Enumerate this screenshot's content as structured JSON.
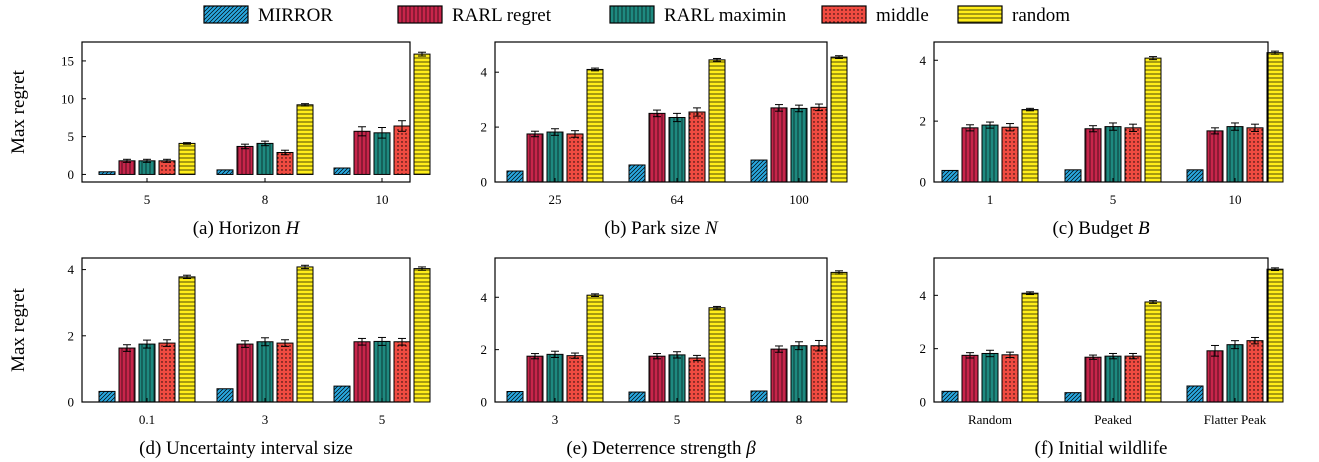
{
  "legend": [
    {
      "name": "MIRROR",
      "color": "#29a8e0",
      "pattern": "diag"
    },
    {
      "name": "RARL regret",
      "color": "#c8254b",
      "pattern": "vert"
    },
    {
      "name": "RARL maximin",
      "color": "#1e8a80",
      "pattern": "vert"
    },
    {
      "name": "middle",
      "color": "#f04b41",
      "pattern": "dots"
    },
    {
      "name": "random",
      "color": "#ffee1a",
      "pattern": "horiz"
    }
  ],
  "chart_data": [
    {
      "type": "bar",
      "caption_prefix": "(a) Horizon ",
      "caption_var": "H",
      "ylabel": "Max regret",
      "categories": [
        "5",
        "8",
        "10"
      ],
      "ylim": [
        -1,
        17.5
      ],
      "yticks": [
        0,
        5,
        10,
        15
      ],
      "series": [
        {
          "name": "MIRROR",
          "values": [
            0.35,
            0.6,
            0.85
          ],
          "errors": [
            0,
            0,
            0
          ]
        },
        {
          "name": "RARL regret",
          "values": [
            1.8,
            3.7,
            5.7
          ],
          "errors": [
            0.2,
            0.3,
            0.6
          ]
        },
        {
          "name": "RARL maximin",
          "values": [
            1.8,
            4.1,
            5.5
          ],
          "errors": [
            0.2,
            0.3,
            0.7
          ]
        },
        {
          "name": "middle",
          "values": [
            1.8,
            2.9,
            6.4
          ],
          "errors": [
            0.2,
            0.3,
            0.7
          ]
        },
        {
          "name": "random",
          "values": [
            4.1,
            9.2,
            15.9
          ],
          "errors": [
            0.1,
            0.15,
            0.25
          ]
        }
      ]
    },
    {
      "type": "bar",
      "caption_prefix": "(b) Park size ",
      "caption_var": "N",
      "ylabel": "",
      "categories": [
        "25",
        "64",
        "100"
      ],
      "ylim": [
        0,
        5.1
      ],
      "yticks": [
        0,
        2,
        4
      ],
      "series": [
        {
          "name": "MIRROR",
          "values": [
            0.4,
            0.62,
            0.8
          ],
          "errors": [
            0,
            0,
            0
          ]
        },
        {
          "name": "RARL regret",
          "values": [
            1.75,
            2.5,
            2.7
          ],
          "errors": [
            0.1,
            0.12,
            0.12
          ]
        },
        {
          "name": "RARL maximin",
          "values": [
            1.82,
            2.35,
            2.68
          ],
          "errors": [
            0.12,
            0.15,
            0.12
          ]
        },
        {
          "name": "middle",
          "values": [
            1.75,
            2.55,
            2.72
          ],
          "errors": [
            0.12,
            0.15,
            0.12
          ]
        },
        {
          "name": "random",
          "values": [
            4.1,
            4.45,
            4.55
          ],
          "errors": [
            0.05,
            0.05,
            0.05
          ]
        }
      ]
    },
    {
      "type": "bar",
      "caption_prefix": "(c) Budget ",
      "caption_var": "B",
      "ylabel": "",
      "categories": [
        "1",
        "5",
        "10"
      ],
      "ylim": [
        0,
        4.6
      ],
      "yticks": [
        0,
        2,
        4
      ],
      "series": [
        {
          "name": "MIRROR",
          "values": [
            0.38,
            0.4,
            0.4
          ],
          "errors": [
            0,
            0,
            0
          ]
        },
        {
          "name": "RARL regret",
          "values": [
            1.78,
            1.75,
            1.68
          ],
          "errors": [
            0.1,
            0.1,
            0.1
          ]
        },
        {
          "name": "RARL maximin",
          "values": [
            1.87,
            1.82,
            1.82
          ],
          "errors": [
            0.1,
            0.12,
            0.12
          ]
        },
        {
          "name": "middle",
          "values": [
            1.8,
            1.78,
            1.78
          ],
          "errors": [
            0.12,
            0.12,
            0.12
          ]
        },
        {
          "name": "random",
          "values": [
            2.38,
            4.07,
            4.25
          ],
          "errors": [
            0.04,
            0.05,
            0.05
          ]
        }
      ]
    },
    {
      "type": "bar",
      "caption_prefix": "(d) Uncertainty interval size",
      "caption_var": "",
      "ylabel": "Max regret",
      "categories": [
        "0.1",
        "3",
        "5"
      ],
      "ylim": [
        0,
        4.35
      ],
      "yticks": [
        0,
        2,
        4
      ],
      "series": [
        {
          "name": "MIRROR",
          "values": [
            0.32,
            0.4,
            0.48
          ],
          "errors": [
            0,
            0,
            0
          ]
        },
        {
          "name": "RARL regret",
          "values": [
            1.63,
            1.75,
            1.82
          ],
          "errors": [
            0.1,
            0.1,
            0.1
          ]
        },
        {
          "name": "RARL maximin",
          "values": [
            1.75,
            1.82,
            1.83
          ],
          "errors": [
            0.12,
            0.12,
            0.12
          ]
        },
        {
          "name": "middle",
          "values": [
            1.78,
            1.78,
            1.82
          ],
          "errors": [
            0.1,
            0.1,
            0.1
          ]
        },
        {
          "name": "random",
          "values": [
            3.78,
            4.08,
            4.03
          ],
          "errors": [
            0.05,
            0.05,
            0.05
          ]
        }
      ]
    },
    {
      "type": "bar",
      "caption_prefix": "(e) Deterrence strength ",
      "caption_var": "β",
      "ylabel": "",
      "categories": [
        "3",
        "5",
        "8"
      ],
      "ylim": [
        0,
        5.5
      ],
      "yticks": [
        0,
        2,
        4
      ],
      "series": [
        {
          "name": "MIRROR",
          "values": [
            0.4,
            0.38,
            0.42
          ],
          "errors": [
            0,
            0,
            0
          ]
        },
        {
          "name": "RARL regret",
          "values": [
            1.75,
            1.75,
            2.02
          ],
          "errors": [
            0.1,
            0.1,
            0.12
          ]
        },
        {
          "name": "RARL maximin",
          "values": [
            1.82,
            1.8,
            2.15
          ],
          "errors": [
            0.12,
            0.12,
            0.15
          ]
        },
        {
          "name": "middle",
          "values": [
            1.77,
            1.68,
            2.15
          ],
          "errors": [
            0.1,
            0.1,
            0.2
          ]
        },
        {
          "name": "random",
          "values": [
            4.08,
            3.6,
            4.95
          ],
          "errors": [
            0.05,
            0.05,
            0.06
          ]
        }
      ]
    },
    {
      "type": "bar",
      "caption_prefix": "(f) Initial wildlife",
      "caption_var": "",
      "ylabel": "",
      "categories": [
        "Random",
        "Peaked",
        "Flatter Peak"
      ],
      "ylim": [
        0,
        5.4
      ],
      "yticks": [
        0,
        2,
        4
      ],
      "series": [
        {
          "name": "MIRROR",
          "values": [
            0.4,
            0.35,
            0.6
          ],
          "errors": [
            0,
            0,
            0
          ]
        },
        {
          "name": "RARL regret",
          "values": [
            1.75,
            1.68,
            1.92
          ],
          "errors": [
            0.1,
            0.08,
            0.2
          ]
        },
        {
          "name": "RARL maximin",
          "values": [
            1.82,
            1.72,
            2.15
          ],
          "errors": [
            0.12,
            0.1,
            0.15
          ]
        },
        {
          "name": "middle",
          "values": [
            1.77,
            1.72,
            2.3
          ],
          "errors": [
            0.1,
            0.1,
            0.12
          ]
        },
        {
          "name": "random",
          "values": [
            4.08,
            3.75,
            4.98
          ],
          "errors": [
            0.05,
            0.05,
            0.05
          ]
        }
      ]
    }
  ]
}
